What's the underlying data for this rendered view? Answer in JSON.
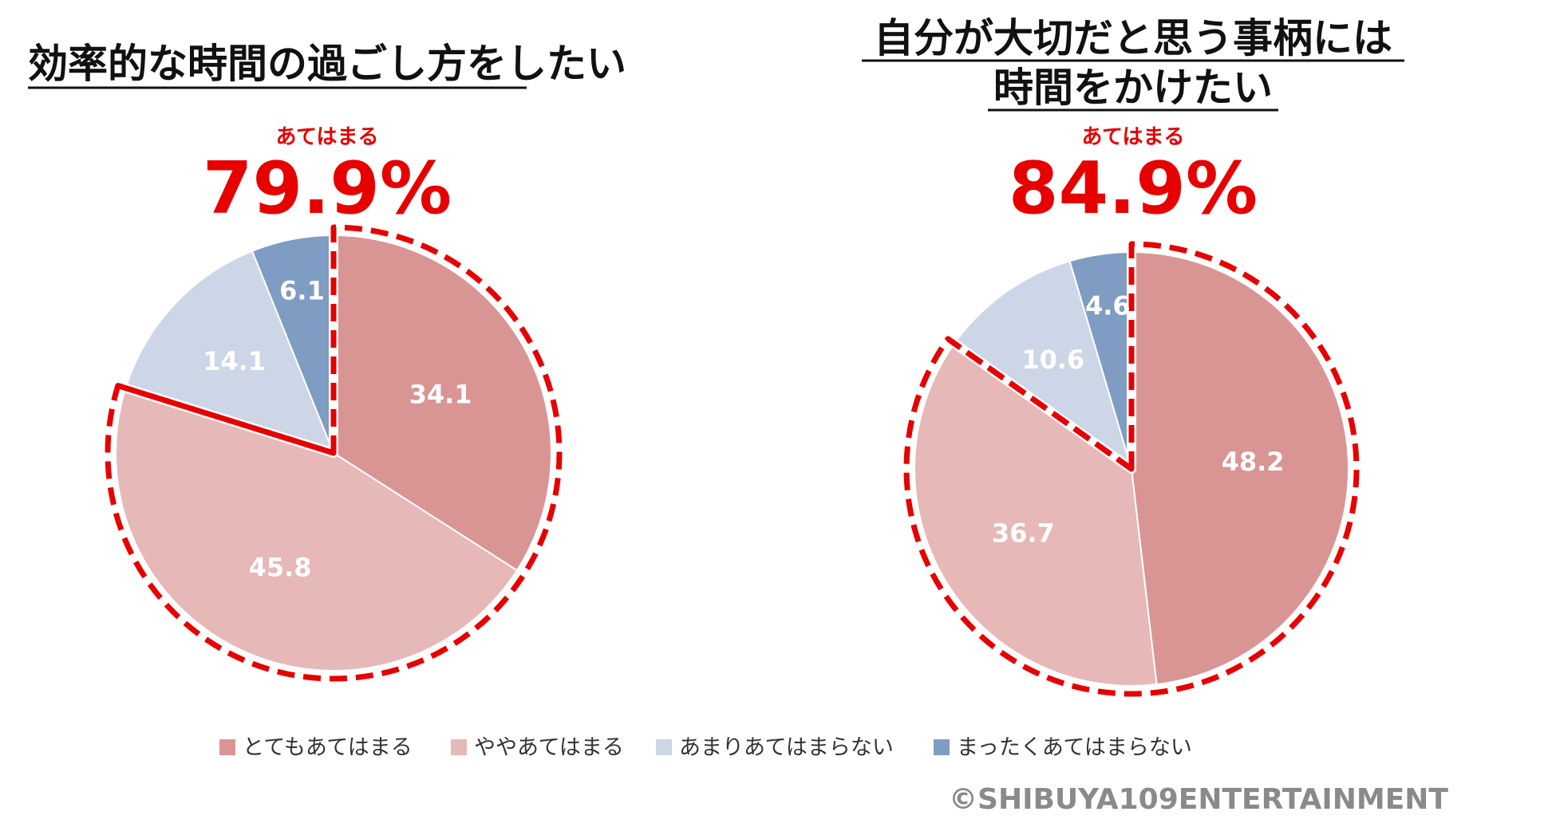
{
  "legend": {
    "items": [
      {
        "label": "とてもあてはまる",
        "color": "#d99594"
      },
      {
        "label": "ややあてはまる",
        "color": "#e6b8b7"
      },
      {
        "label": "あまりあてはまらない",
        "color": "#ccd6e6"
      },
      {
        "label": "まったくあてはまらない",
        "color": "#7f9cc2"
      }
    ]
  },
  "highlight_color": "#e60000",
  "copyright": "©SHIBUYA109ENTERTAINMENT",
  "chart_data": [
    {
      "type": "pie",
      "title": [
        "効率的な時間の過ごし方をしたい"
      ],
      "kicker": "あてはまる",
      "total": "79.9%",
      "categories": [
        "とてもあてはまる",
        "ややあてはまる",
        "あまりあてはまらない",
        "まったくあてはまらない"
      ],
      "values": [
        34.1,
        45.8,
        14.1,
        6.1
      ]
    },
    {
      "type": "pie",
      "title": [
        "自分が大切だと思う事柄には",
        "時間をかけたい"
      ],
      "kicker": "あてはまる",
      "total": "84.9%",
      "categories": [
        "とてもあてはまる",
        "ややあてはまる",
        "あまりあてはまらない",
        "まったくあてはまらない"
      ],
      "values": [
        48.2,
        36.7,
        10.6,
        4.6
      ]
    }
  ]
}
